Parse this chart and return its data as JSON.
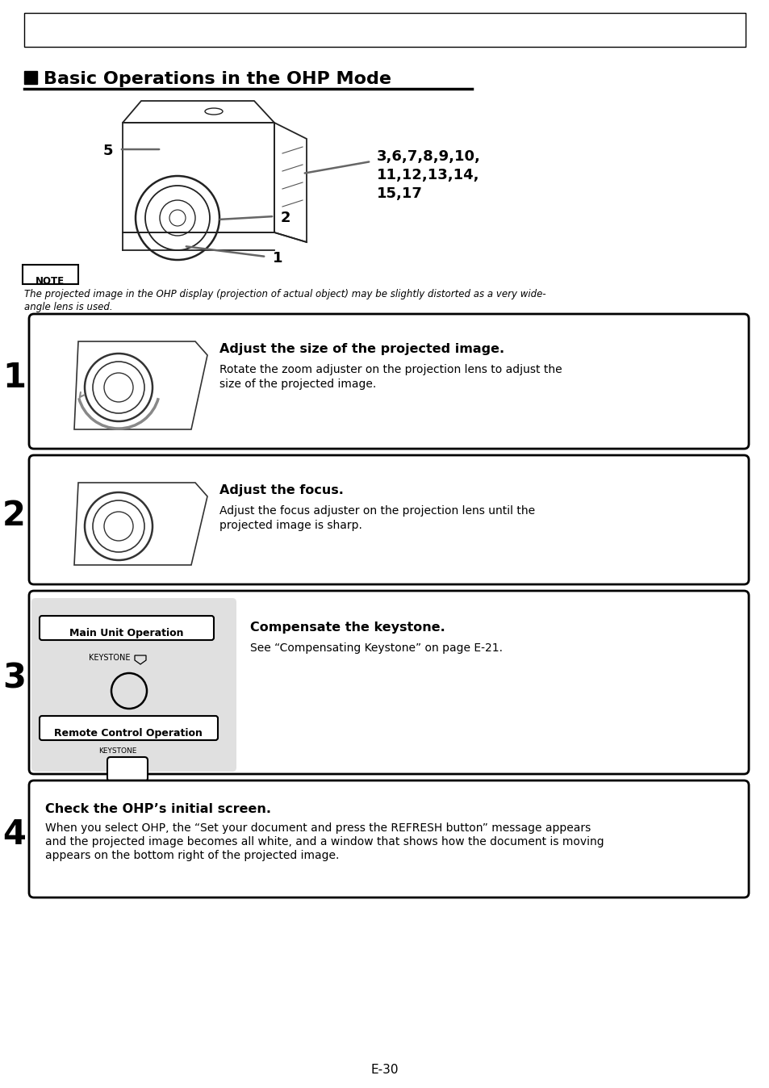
{
  "title": "Basic Operations in the OHP Mode",
  "page_number": "E-30",
  "background_color": "#ffffff",
  "note_text_line1": "The projected image in the OHP display (projection of actual object) may be slightly distorted as a very wide-",
  "note_text_line2": "angle lens is used.",
  "steps": [
    {
      "number": "1",
      "title": "Adjust the size of the projected image.",
      "body_line1": "Rotate the zoom adjuster on the projection lens to adjust the",
      "body_line2": "size of the projected image.",
      "image_type": "lens_zoom"
    },
    {
      "number": "2",
      "title": "Adjust the focus.",
      "body_line1": "Adjust the focus adjuster on the projection lens until the",
      "body_line2": "projected image is sharp.",
      "image_type": "lens_focus"
    },
    {
      "number": "3",
      "title": "Compensate the keystone.",
      "body_line1": "See “Compensating Keystone” on page E-21.",
      "body_line2": "",
      "image_type": "keystone"
    },
    {
      "number": "4",
      "title": "Check the OHP’s initial screen.",
      "body_line1": "When you select OHP, the “Set your document and press the REFRESH button” message appears",
      "body_line2": "and the projected image becomes all white, and a window that shows how the document is moving",
      "body_line3": "appears on the bottom right of the projected image.",
      "image_type": "none"
    }
  ]
}
